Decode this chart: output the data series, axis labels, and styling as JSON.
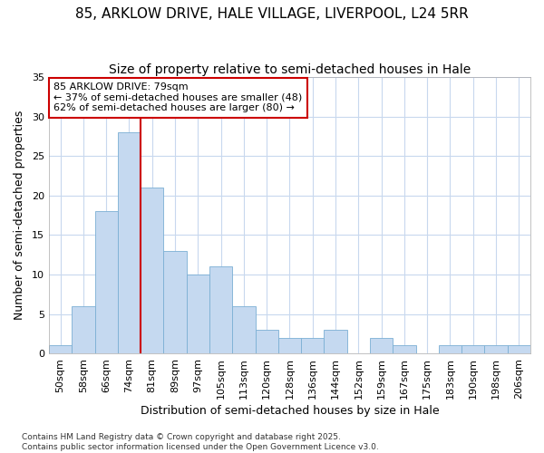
{
  "title_line1": "85, ARKLOW DRIVE, HALE VILLAGE, LIVERPOOL, L24 5RR",
  "title_line2": "Size of property relative to semi-detached houses in Hale",
  "xlabel": "Distribution of semi-detached houses by size in Hale",
  "ylabel": "Number of semi-detached properties",
  "categories": [
    "50sqm",
    "58sqm",
    "66sqm",
    "74sqm",
    "81sqm",
    "89sqm",
    "97sqm",
    "105sqm",
    "113sqm",
    "120sqm",
    "128sqm",
    "136sqm",
    "144sqm",
    "152sqm",
    "159sqm",
    "167sqm",
    "175sqm",
    "183sqm",
    "190sqm",
    "198sqm",
    "206sqm"
  ],
  "values": [
    1,
    6,
    18,
    28,
    21,
    13,
    10,
    11,
    6,
    3,
    2,
    2,
    3,
    0,
    2,
    1,
    0,
    1,
    1,
    1,
    1
  ],
  "bar_color": "#c5d9f0",
  "bar_edgecolor": "#7bafd4",
  "red_line_color": "#cc0000",
  "annotation_title": "85 ARKLOW DRIVE: 79sqm",
  "annotation_line2": "← 37% of semi-detached houses are smaller (48)",
  "annotation_line3": "62% of semi-detached houses are larger (80) →",
  "annotation_box_facecolor": "#ffffff",
  "annotation_box_edgecolor": "#cc0000",
  "fig_background": "#ffffff",
  "axes_background": "#ffffff",
  "grid_color": "#c8d8ee",
  "ylim": [
    0,
    35
  ],
  "yticks": [
    0,
    5,
    10,
    15,
    20,
    25,
    30,
    35
  ],
  "title_fontsize": 11,
  "subtitle_fontsize": 10,
  "axis_label_fontsize": 9,
  "tick_fontsize": 8,
  "annotation_fontsize": 8,
  "footnote": "Contains HM Land Registry data © Crown copyright and database right 2025.\nContains public sector information licensed under the Open Government Licence v3.0."
}
